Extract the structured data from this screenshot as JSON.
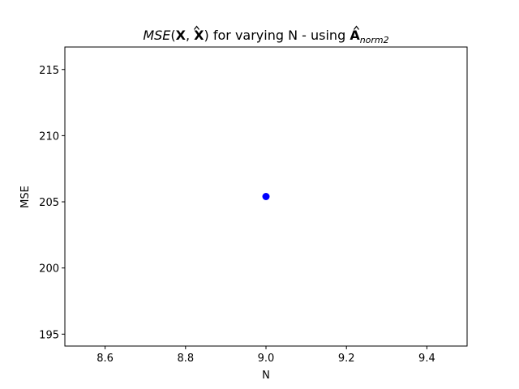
{
  "chart_data": {
    "type": "scatter",
    "title": {
      "func": "MSE",
      "open": "(",
      "x": "X",
      "comma": ", ",
      "xhat": "X",
      "close": ")",
      "middle": " for varying N - using ",
      "a": "A",
      "sub": "norm2"
    },
    "xlabel": "N",
    "ylabel": "MSE",
    "xlim": [
      8.5,
      9.5
    ],
    "ylim": [
      194.1,
      216.7
    ],
    "xticks": [
      8.6,
      8.8,
      9.0,
      9.2,
      9.4
    ],
    "xtick_labels": [
      "8.6",
      "8.8",
      "9.0",
      "9.2",
      "9.4"
    ],
    "yticks": [
      195,
      200,
      205,
      210,
      215
    ],
    "ytick_labels": [
      "195",
      "200",
      "205",
      "210",
      "215"
    ],
    "grid": false,
    "marker_color": "#0000ff",
    "series": [
      {
        "x": [
          9.0
        ],
        "y": [
          205.4
        ]
      }
    ]
  }
}
